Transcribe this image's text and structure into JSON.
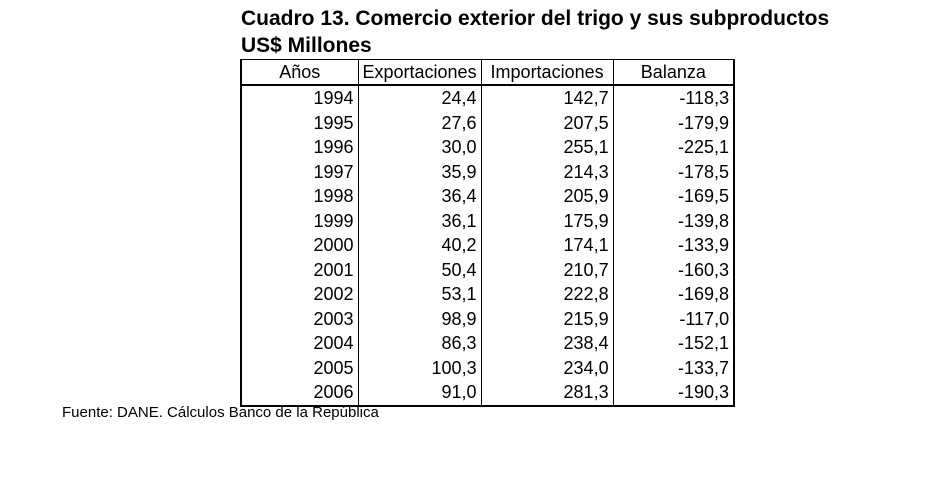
{
  "title": "Cuadro 13. Comercio exterior del trigo y sus subproductos",
  "subtitle": "US$ Millones",
  "table": {
    "headers": [
      "Años",
      "Exportaciones",
      "Importaciones",
      "Balanza"
    ],
    "rows": [
      [
        "1994",
        "24,4",
        "142,7",
        "-118,3"
      ],
      [
        "1995",
        "27,6",
        "207,5",
        "-179,9"
      ],
      [
        "1996",
        "30,0",
        "255,1",
        "-225,1"
      ],
      [
        "1997",
        "35,9",
        "214,3",
        "-178,5"
      ],
      [
        "1998",
        "36,4",
        "205,9",
        "-169,5"
      ],
      [
        "1999",
        "36,1",
        "175,9",
        "-139,8"
      ],
      [
        "2000",
        "40,2",
        "174,1",
        "-133,9"
      ],
      [
        "2001",
        "50,4",
        "210,7",
        "-160,3"
      ],
      [
        "2002",
        "53,1",
        "222,8",
        "-169,8"
      ],
      [
        "2003",
        "98,9",
        "215,9",
        "-117,0"
      ],
      [
        "2004",
        "86,3",
        "238,4",
        "-152,1"
      ],
      [
        "2005",
        "100,3",
        "234,0",
        "-133,7"
      ],
      [
        "2006",
        "91,0",
        "281,3",
        "-190,3"
      ]
    ]
  },
  "source": "Fuente: DANE. Cálculos Banco de la República"
}
